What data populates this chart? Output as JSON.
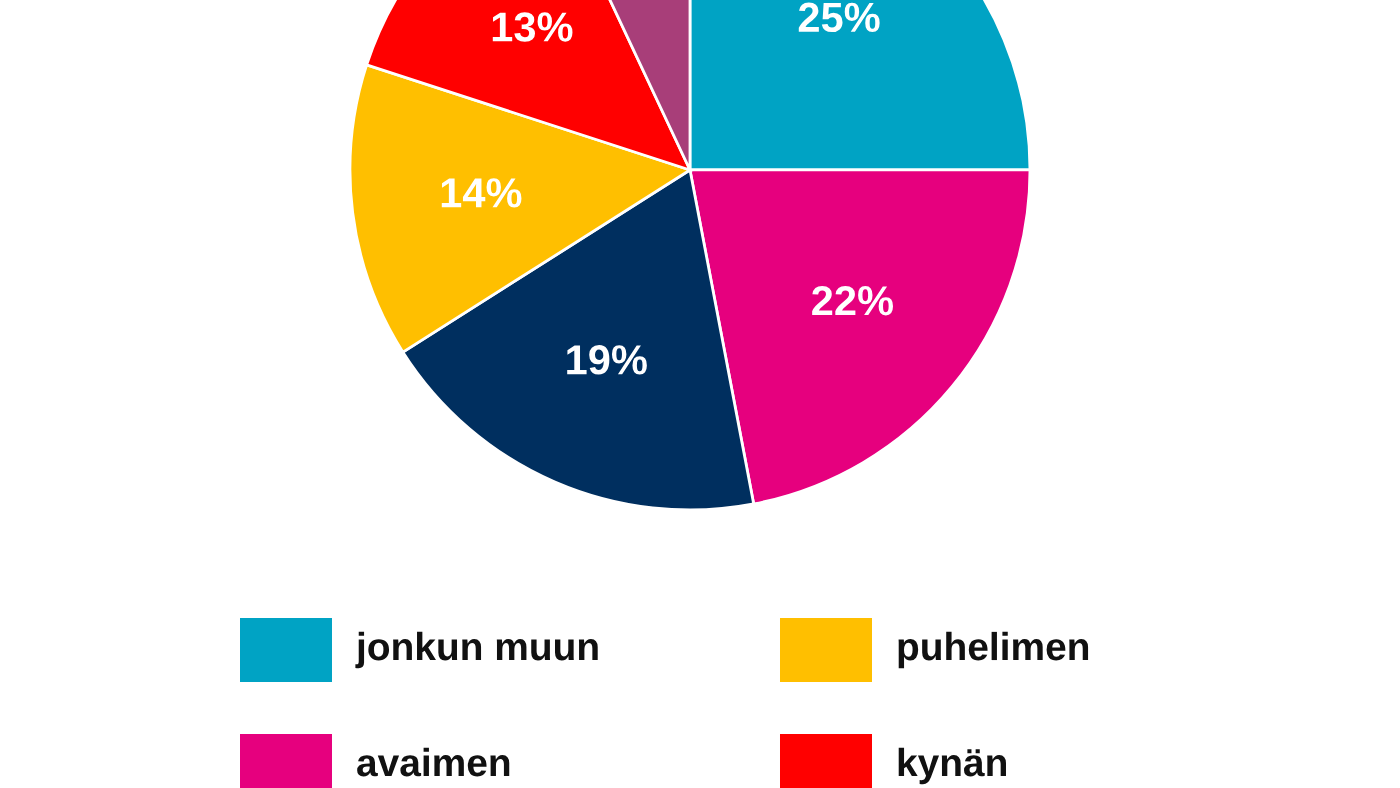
{
  "chart_data": {
    "type": "pie",
    "categories": [
      "jonkun muun",
      "avaimen",
      null,
      "puhelimen",
      "kynän",
      null
    ],
    "values": [
      25,
      22,
      19,
      14,
      13,
      7
    ],
    "colors": [
      "#00a3c4",
      "#e6007e",
      "#002f5f",
      "#ffbf00",
      "#ff0000",
      "#a83e79"
    ],
    "value_labels": [
      "25%",
      "22%",
      "19%",
      "14%",
      "13%",
      null
    ],
    "legend": "bottom"
  }
}
